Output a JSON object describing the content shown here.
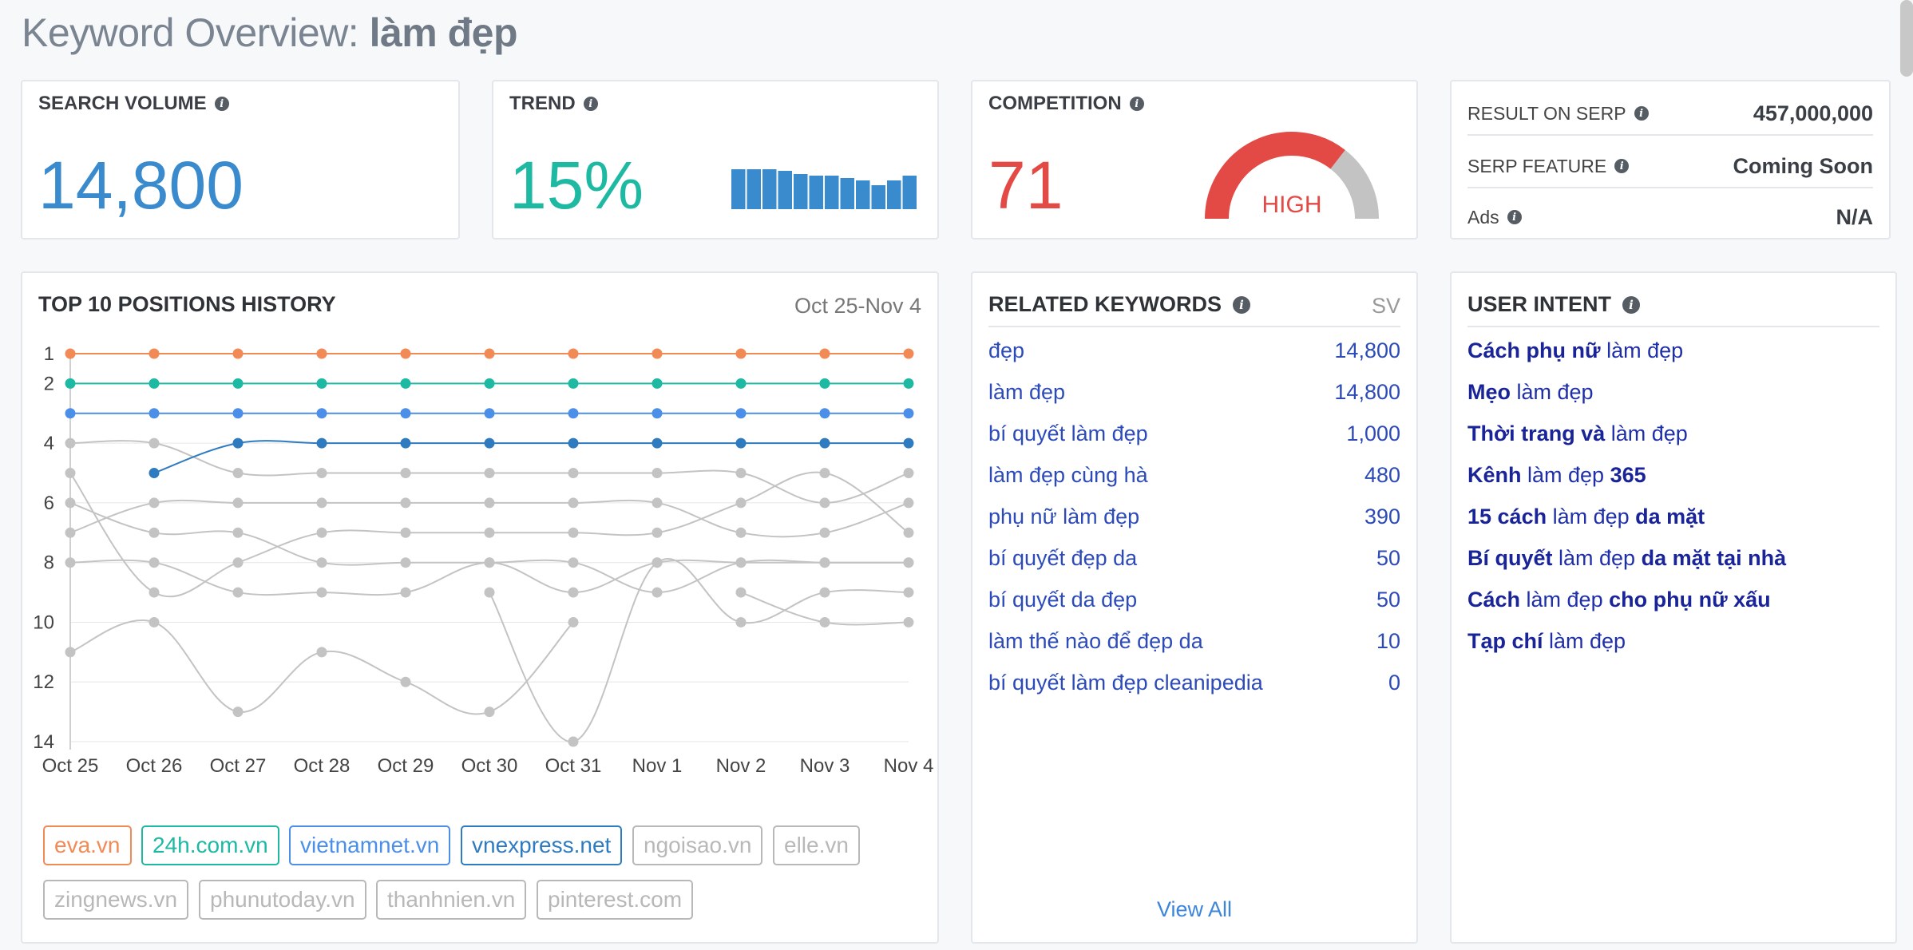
{
  "header": {
    "title_prefix": "Keyword Overview: ",
    "keyword": "làm đẹp"
  },
  "colors": {
    "blue": "#3a8bcd",
    "teal": "#1db9a3",
    "red": "#e34a45",
    "gray": "#c3c3c3",
    "orange": "#f28a56"
  },
  "search_volume": {
    "label": "SEARCH VOLUME",
    "value": "14,800"
  },
  "trend": {
    "label": "TREND",
    "value": "15%",
    "bars": [
      100,
      100,
      100,
      96,
      88,
      84,
      84,
      78,
      72,
      60,
      72,
      84
    ]
  },
  "competition": {
    "label": "COMPETITION",
    "value": "71",
    "level": "HIGH",
    "fraction": 0.71
  },
  "serp": {
    "rows": [
      {
        "label": "RESULT ON SERP",
        "value": "457,000,000"
      },
      {
        "label": "SERP FEATURE",
        "value": "Coming Soon"
      },
      {
        "label": "Ads",
        "value": "N/A"
      }
    ]
  },
  "positions": {
    "title": "TOP 10 POSITIONS HISTORY",
    "date_range": "Oct 25-Nov 4"
  },
  "chart_data": {
    "type": "line",
    "title": "TOP 10 POSITIONS HISTORY",
    "x": [
      "Oct 25",
      "Oct 26",
      "Oct 27",
      "Oct 28",
      "Oct 29",
      "Oct 30",
      "Oct 31",
      "Nov 1",
      "Nov 2",
      "Nov 3",
      "Nov 4"
    ],
    "y_ticks": [
      1,
      2,
      4,
      6,
      8,
      10,
      12,
      14
    ],
    "ylim": [
      1,
      14
    ],
    "y_inverted": true,
    "series": [
      {
        "name": "eva.vn",
        "color": "#f28a56",
        "values": [
          1,
          1,
          1,
          1,
          1,
          1,
          1,
          1,
          1,
          1,
          1
        ]
      },
      {
        "name": "24h.com.vn",
        "color": "#1db9a3",
        "values": [
          2,
          2,
          2,
          2,
          2,
          2,
          2,
          2,
          2,
          2,
          2
        ]
      },
      {
        "name": "vietnamnet.vn",
        "color": "#4b8fe8",
        "values": [
          3,
          3,
          3,
          3,
          3,
          3,
          3,
          3,
          3,
          3,
          3
        ]
      },
      {
        "name": "vnexpress.net",
        "color": "#2f7bc0",
        "values": [
          null,
          5,
          4,
          4,
          4,
          4,
          4,
          4,
          4,
          4,
          4
        ]
      },
      {
        "name": "ngoisao.vn",
        "color": "#c3c3c3",
        "values": [
          4,
          4,
          5,
          5,
          5,
          5,
          5,
          5,
          5,
          6,
          5
        ]
      },
      {
        "name": "elle.vn",
        "color": "#c3c3c3",
        "values": [
          5,
          9,
          8,
          7,
          7,
          7,
          7,
          7,
          6,
          5,
          7
        ]
      },
      {
        "name": "zingnews.vn",
        "color": "#c3c3c3",
        "values": [
          6,
          7,
          7,
          8,
          8,
          8,
          8,
          9,
          8,
          8,
          8
        ]
      },
      {
        "name": "phunutoday.vn",
        "color": "#c3c3c3",
        "values": [
          7,
          6,
          6,
          6,
          6,
          6,
          6,
          6,
          7,
          7,
          6
        ]
      },
      {
        "name": "thanhnien.vn",
        "color": "#c3c3c3",
        "values": [
          8,
          8,
          9,
          9,
          9,
          8,
          9,
          8,
          8,
          8,
          8
        ]
      },
      {
        "name": "pinterest.com",
        "color": "#c3c3c3",
        "values": [
          11,
          10,
          13,
          11,
          12,
          13,
          10,
          null,
          9,
          10,
          10
        ]
      },
      {
        "name": "",
        "color": "#c3c3c3",
        "values": [
          null,
          null,
          null,
          null,
          null,
          9,
          14,
          8,
          10,
          9,
          9
        ]
      }
    ]
  },
  "tags": [
    {
      "label": "eva.vn",
      "color": "#f28a56"
    },
    {
      "label": "24h.com.vn",
      "color": "#1db9a3"
    },
    {
      "label": "vietnamnet.vn",
      "color": "#4b8fe8"
    },
    {
      "label": "vnexpress.net",
      "color": "#2f7bc0"
    },
    {
      "label": "ngoisao.vn",
      "color": "#b8b8b8"
    },
    {
      "label": "elle.vn",
      "color": "#b8b8b8"
    },
    {
      "label": "zingnews.vn",
      "color": "#b8b8b8"
    },
    {
      "label": "phunutoday.vn",
      "color": "#b8b8b8"
    },
    {
      "label": "thanhnien.vn",
      "color": "#b8b8b8"
    },
    {
      "label": "pinterest.com",
      "color": "#b8b8b8"
    }
  ],
  "related": {
    "title": "RELATED KEYWORDS",
    "col": "SV",
    "items": [
      {
        "kw": "đẹp",
        "sv": "14,800"
      },
      {
        "kw": "làm đẹp",
        "sv": "14,800"
      },
      {
        "kw": "bí quyết làm đẹp",
        "sv": "1,000"
      },
      {
        "kw": "làm đẹp cùng hà",
        "sv": "480"
      },
      {
        "kw": "phụ nữ làm đẹp",
        "sv": "390"
      },
      {
        "kw": "bí quyết đẹp da",
        "sv": "50"
      },
      {
        "kw": "bí quyết da đẹp",
        "sv": "50"
      },
      {
        "kw": "làm thế nào để đẹp da",
        "sv": "10"
      },
      {
        "kw": "bí quyết làm đẹp cleanipedia",
        "sv": "0"
      }
    ],
    "view_all": "View All"
  },
  "intent": {
    "title": "USER INTENT",
    "items": [
      {
        "pre": "Cách phụ nữ",
        "mid": " làm đẹp",
        "post": ""
      },
      {
        "pre": "Mẹo",
        "mid": " làm đẹp",
        "post": ""
      },
      {
        "pre": "Thời trang và",
        "mid": " làm đẹp",
        "post": ""
      },
      {
        "pre": "Kênh",
        "mid": " làm đẹp ",
        "post": "365"
      },
      {
        "pre": "15 cách",
        "mid": " làm đẹp ",
        "post": "da mặt"
      },
      {
        "pre": "Bí quyết",
        "mid": " làm đẹp ",
        "post": "da mặt tại nhà"
      },
      {
        "pre": "Cách",
        "mid": " làm đẹp ",
        "post": "cho phụ nữ xấu"
      },
      {
        "pre": "Tạp chí",
        "mid": " làm đẹp",
        "post": ""
      }
    ]
  }
}
